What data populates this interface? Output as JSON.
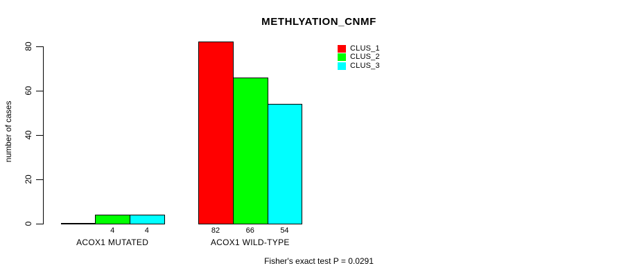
{
  "chart_data": {
    "type": "bar",
    "title": "METHLYATION_CNMF",
    "ylabel": "number of cases",
    "xlabel": "",
    "categories": [
      "ACOX1 MUTATED",
      "ACOX1 WILD-TYPE"
    ],
    "series": [
      {
        "name": "CLUS_1",
        "color": "#ff0000",
        "values": [
          0,
          82
        ]
      },
      {
        "name": "CLUS_2",
        "color": "#00ff00",
        "values": [
          4,
          66
        ]
      },
      {
        "name": "CLUS_3",
        "color": "#00ffff",
        "values": [
          4,
          54
        ]
      }
    ],
    "bar_value_labels": [
      [
        "",
        "4",
        "4"
      ],
      [
        "82",
        "66",
        "54"
      ]
    ],
    "yticks": [
      0,
      20,
      40,
      60,
      80
    ],
    "ylim": [
      0,
      85
    ],
    "grid": false,
    "legend_position": "top-right",
    "bar_border_color": "#000000",
    "axis_color": "#000000",
    "background": "#ffffff",
    "annotation": "Fisher's exact test P = 0.0291"
  }
}
